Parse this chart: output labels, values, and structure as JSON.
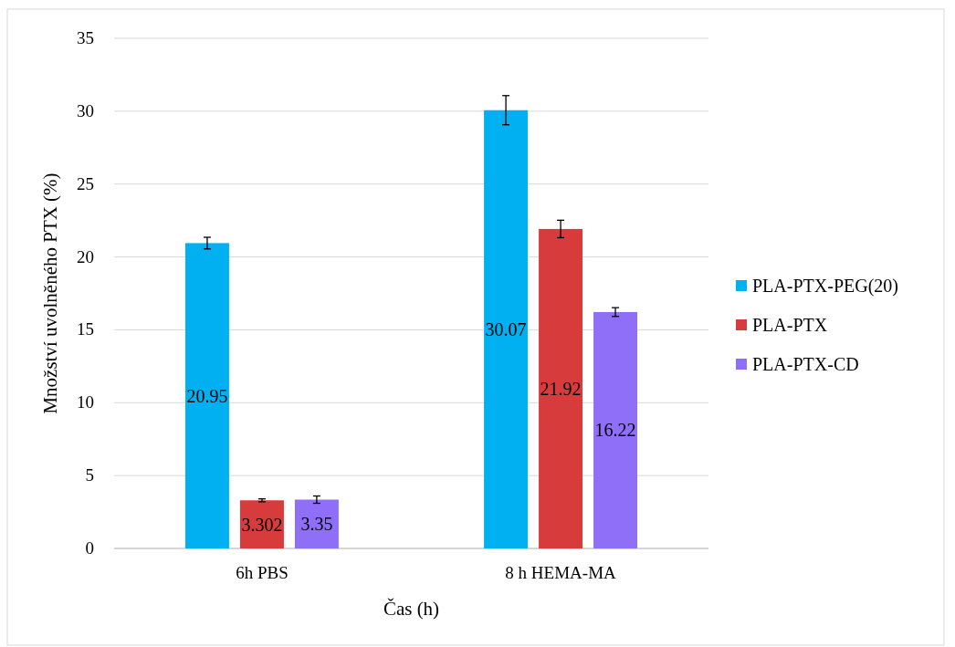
{
  "chart_data": {
    "type": "bar",
    "xlabel": "Čas (h)",
    "ylabel": "Množství uvolněného PTX (%)",
    "categories": [
      "6h PBS",
      "8 h HEMA-MA"
    ],
    "series": [
      {
        "name": "PLA-PTX-PEG(20)",
        "color": "#00b0f0",
        "values": [
          20.95,
          30.07
        ],
        "errors": [
          0.4,
          1.0
        ]
      },
      {
        "name": "PLA-PTX",
        "color": "#d83b3b",
        "values": [
          3.302,
          21.92
        ],
        "errors": [
          0.1,
          0.6
        ]
      },
      {
        "name": "PLA-PTX-CD",
        "color": "#8f6ff7",
        "values": [
          3.35,
          16.22
        ],
        "errors": [
          0.25,
          0.3
        ]
      }
    ],
    "ylim": [
      0,
      35
    ],
    "yticks": [
      0,
      5,
      10,
      15,
      20,
      25,
      30,
      35
    ],
    "grid": "y",
    "legend": "right",
    "data_labels": true
  }
}
